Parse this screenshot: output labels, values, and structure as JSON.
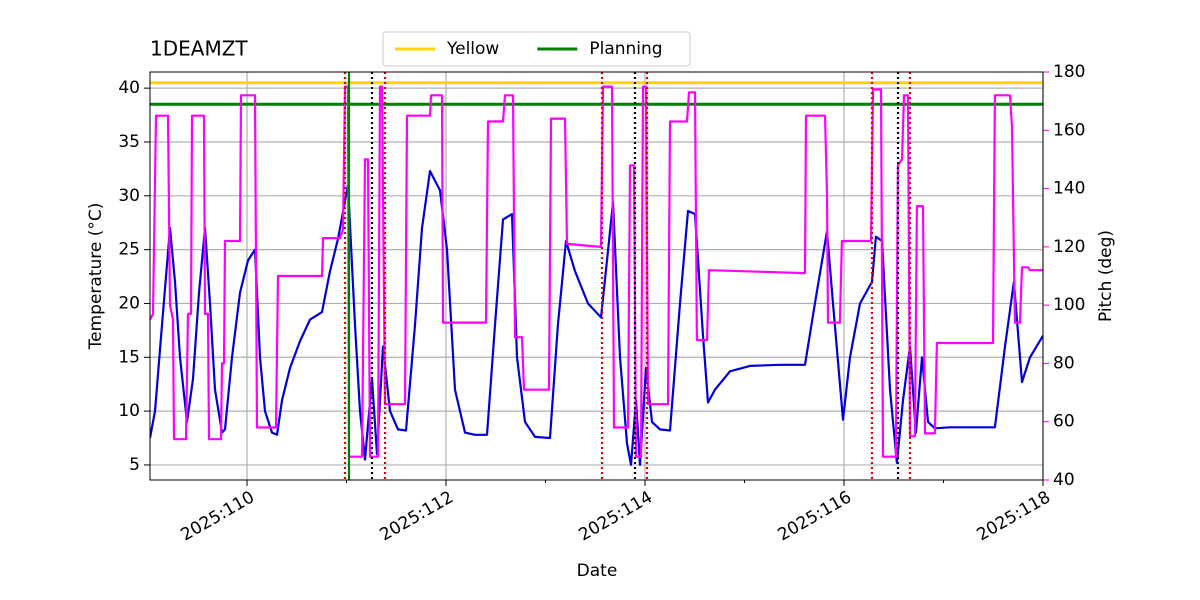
{
  "chart_data": {
    "type": "line",
    "title": "1DEAMZT",
    "x_label": "Date",
    "y_label": "Temperature (°C)",
    "y2_label": "Pitch (deg)",
    "y2_color": "#ff00ff",
    "xlim": [
      109.025,
      118
    ],
    "xticks": [
      {
        "value": 110,
        "label": "2025:110"
      },
      {
        "value": 112,
        "label": "2025:112"
      },
      {
        "value": 114,
        "label": "2025:114"
      },
      {
        "value": 116,
        "label": "2025:116"
      },
      {
        "value": 118,
        "label": "2025:118"
      }
    ],
    "xminorticks": [
      111,
      113,
      115,
      117
    ],
    "ylim": [
      3.6,
      41.5
    ],
    "yticks": [
      5,
      10,
      15,
      20,
      25,
      30,
      35,
      40
    ],
    "y2lim": [
      40,
      180
    ],
    "y2ticks": [
      40,
      60,
      80,
      100,
      120,
      140,
      160,
      180
    ],
    "grid": true,
    "legend": "top",
    "reference_lines": [
      {
        "name": "Yellow",
        "value": 40.5,
        "color": "#ffd700"
      },
      {
        "name": "Planning",
        "value": 38.5,
        "color": "#008000"
      }
    ],
    "vlines": [
      {
        "x": 110.985,
        "color": "#dd0000",
        "style": "dotted"
      },
      {
        "x": 111.025,
        "color": "#008000",
        "style": "solid"
      },
      {
        "x": 111.256,
        "color": "#000000",
        "style": "dotted"
      },
      {
        "x": 111.387,
        "color": "#dd0000",
        "style": "dotted"
      },
      {
        "x": 113.568,
        "color": "#dd0000",
        "style": "dotted"
      },
      {
        "x": 113.899,
        "color": "#000000",
        "style": "dotted"
      },
      {
        "x": 114.02,
        "color": "#dd0000",
        "style": "dotted"
      },
      {
        "x": 116.281,
        "color": "#dd0000",
        "style": "dotted"
      },
      {
        "x": 116.543,
        "color": "#000000",
        "style": "dotted"
      },
      {
        "x": 116.663,
        "color": "#dd0000",
        "style": "dotted"
      }
    ],
    "series": [
      {
        "color": "#0000dd",
        "axis": "y",
        "x": [
          109.025,
          109.075,
          109.146,
          109.226,
          109.276,
          109.327,
          109.397,
          109.457,
          109.517,
          109.578,
          109.628,
          109.678,
          109.749,
          109.779,
          109.849,
          109.93,
          110.01,
          110.08,
          110.131,
          110.181,
          110.251,
          110.301,
          110.352,
          110.432,
          110.533,
          110.633,
          110.754,
          110.834,
          110.914,
          111.015,
          111.085,
          111.136,
          111.186,
          111.256,
          111.306,
          111.367,
          111.437,
          111.517,
          111.598,
          111.688,
          111.759,
          111.839,
          111.94,
          112.01,
          112.09,
          112.191,
          112.291,
          112.412,
          112.492,
          112.573,
          112.663,
          112.713,
          112.794,
          112.894,
          113.045,
          113.125,
          113.206,
          113.296,
          113.427,
          113.558,
          113.618,
          113.678,
          113.749,
          113.819,
          113.859,
          113.909,
          113.95,
          114.01,
          114.07,
          114.151,
          114.251,
          114.352,
          114.432,
          114.502,
          114.583,
          114.633,
          114.703,
          114.854,
          115.055,
          115.357,
          115.608,
          115.708,
          115.829,
          115.889,
          115.99,
          116.06,
          116.161,
          116.281,
          116.321,
          116.382,
          116.462,
          116.532,
          116.593,
          116.663,
          116.723,
          116.784,
          116.844,
          116.914,
          117.065,
          117.517,
          117.618,
          117.708,
          117.789,
          117.869,
          118.0
        ],
        "values": [
          7.5,
          10,
          18,
          27,
          22,
          15,
          9,
          13,
          21,
          27,
          20,
          12,
          8,
          8.3,
          15,
          21,
          24,
          25,
          15,
          10,
          8,
          7.8,
          11,
          14,
          16.5,
          18.5,
          19.2,
          23,
          26,
          31,
          18,
          10,
          5.5,
          13,
          6,
          16,
          10,
          8.3,
          8.2,
          18,
          27,
          32.3,
          30.5,
          25,
          12,
          8,
          7.8,
          7.8,
          18,
          27.8,
          28.3,
          15,
          9,
          7.6,
          7.5,
          18,
          25.8,
          23,
          20,
          18.7,
          24,
          29.4,
          15,
          7,
          5,
          11,
          5,
          14,
          9,
          8.3,
          8.2,
          20,
          28.6,
          28.3,
          17,
          10.8,
          12,
          13.7,
          14.2,
          14.3,
          14.3,
          20,
          26.7,
          20,
          9.2,
          15,
          20,
          22,
          26.2,
          25.8,
          12,
          5.2,
          11,
          16,
          8,
          15,
          9,
          8.4,
          8.5,
          8.5,
          16,
          22,
          12.7,
          15,
          17
        ]
      },
      {
        "color": "#ff00ff",
        "axis": "y2",
        "x": [
          109.025,
          109.055,
          109.085,
          109.206,
          109.226,
          109.256,
          109.266,
          109.387,
          109.407,
          109.437,
          109.447,
          109.568,
          109.578,
          109.608,
          109.618,
          109.739,
          109.749,
          109.769,
          109.779,
          109.93,
          109.94,
          110.08,
          110.1,
          110.291,
          110.311,
          110.754,
          110.764,
          110.935,
          110.965,
          110.985,
          111.015,
          111.025,
          111.156,
          111.186,
          111.216,
          111.236,
          111.316,
          111.337,
          111.357,
          111.387,
          111.588,
          111.608,
          111.839,
          111.849,
          111.96,
          111.97,
          112.402,
          112.422,
          112.573,
          112.593,
          112.673,
          112.693,
          112.764,
          112.784,
          113.035,
          113.055,
          113.196,
          113.216,
          113.558,
          113.578,
          113.668,
          113.688,
          113.829,
          113.849,
          113.889,
          113.909,
          113.96,
          113.98,
          114.01,
          114.03,
          114.231,
          114.251,
          114.422,
          114.442,
          114.502,
          114.522,
          114.623,
          114.643,
          115.608,
          115.618,
          115.809,
          115.829,
          115.839,
          115.959,
          115.979,
          116.271,
          116.291,
          116.372,
          116.392,
          116.522,
          116.542,
          116.583,
          116.603,
          116.643,
          116.663,
          116.713,
          116.733,
          116.794,
          116.814,
          116.914,
          116.934,
          117.497,
          117.517,
          117.668,
          117.688,
          117.718,
          117.769,
          117.789,
          117.849,
          117.869,
          118.0
        ],
        "values": [
          95,
          97,
          165,
          165,
          100,
          95,
          54,
          54,
          97,
          97,
          165,
          165,
          97,
          97,
          54,
          54,
          80,
          80,
          122,
          122,
          172,
          172,
          58,
          58,
          110,
          110,
          123,
          123,
          126,
          175,
          175,
          48,
          48,
          150,
          150,
          48,
          48,
          175,
          175,
          66,
          66,
          165,
          165,
          172,
          172,
          94,
          94,
          163,
          163,
          172,
          172,
          89,
          89,
          71,
          71,
          164,
          164,
          121,
          120,
          175,
          175,
          58,
          58,
          148,
          148,
          48,
          48,
          175,
          175,
          66,
          66,
          163,
          163,
          173,
          173,
          88,
          88,
          112,
          111,
          165,
          165,
          138,
          94,
          94,
          122,
          122,
          174,
          174,
          48,
          48,
          148,
          150,
          172,
          172,
          55,
          55,
          134,
          134,
          56,
          56,
          87,
          87,
          172,
          172,
          161,
          94,
          94,
          113,
          113,
          112,
          112
        ]
      }
    ]
  }
}
